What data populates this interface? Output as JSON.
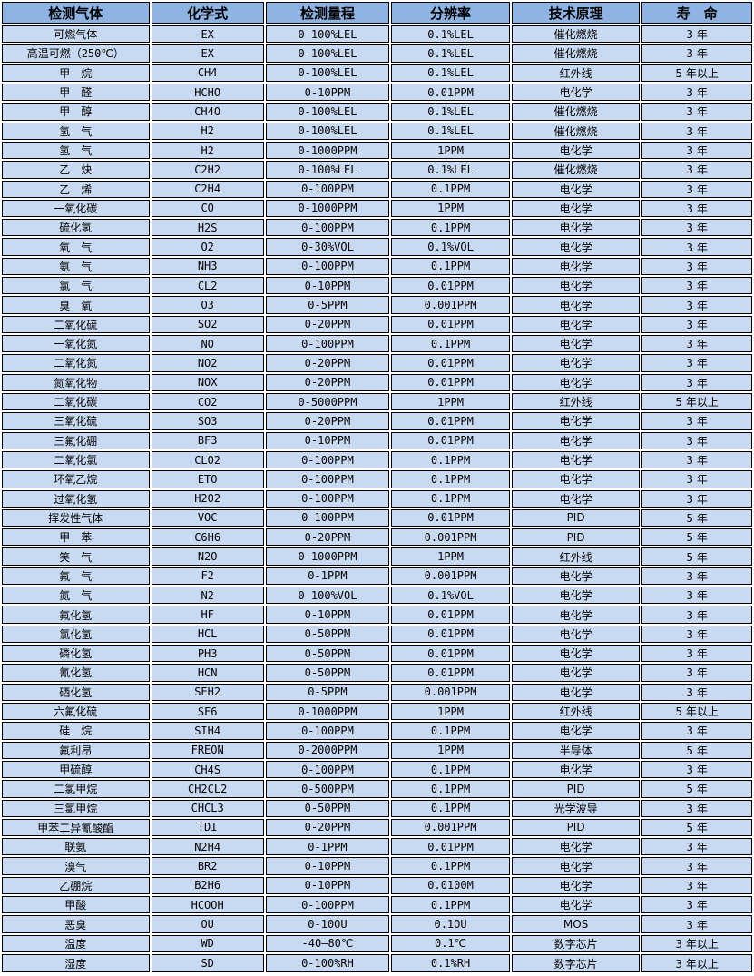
{
  "table": {
    "headers": [
      "检测气体",
      "化学式",
      "检测量程",
      "分辨率",
      "技术原理",
      "寿　命"
    ],
    "column_keys": [
      "gas-name",
      "formula",
      "range",
      "resolution",
      "principle",
      "lifespan"
    ],
    "colors": {
      "header_bg": "#8db4e2",
      "row_bg": "#c8daf1",
      "border": "#000000",
      "background": "#ffffff",
      "text": "#000000"
    },
    "rows": [
      [
        "可燃气体",
        "EX",
        "0-100%LEL",
        "0.1%LEL",
        "催化燃烧",
        "3 年"
      ],
      [
        "高温可燃（250℃）",
        "EX",
        "0-100%LEL",
        "0.1%LEL",
        "催化燃烧",
        "3 年"
      ],
      [
        "甲　烷",
        "CH4",
        "0-100%LEL",
        "0.1%LEL",
        "红外线",
        "5 年以上"
      ],
      [
        "甲　醛",
        "HCHO",
        "0-10PPM",
        "0.01PPM",
        "电化学",
        "3 年"
      ],
      [
        "甲　醇",
        "CH4O",
        "0-100%LEL",
        "0.1%LEL",
        "催化燃烧",
        "3 年"
      ],
      [
        "氢　气",
        "H2",
        "0-100%LEL",
        "0.1%LEL",
        "催化燃烧",
        "3 年"
      ],
      [
        "氢　气",
        "H2",
        "0-1000PPM",
        "1PPM",
        "电化学",
        "3 年"
      ],
      [
        "乙　炔",
        "C2H2",
        "0-100%LEL",
        "0.1%LEL",
        "催化燃烧",
        "3 年"
      ],
      [
        "乙　烯",
        "C2H4",
        "0-100PPM",
        "0.1PPM",
        "电化学",
        "3 年"
      ],
      [
        "一氧化碳",
        "CO",
        "0-1000PPM",
        "1PPM",
        "电化学",
        "3 年"
      ],
      [
        "硫化氢",
        "H2S",
        "0-100PPM",
        "0.1PPM",
        "电化学",
        "3 年"
      ],
      [
        "氧　气",
        "O2",
        "0-30%VOL",
        "0.1%VOL",
        "电化学",
        "3 年"
      ],
      [
        "氨　气",
        "NH3",
        "0-100PPM",
        "0.1PPM",
        "电化学",
        "3 年"
      ],
      [
        "氯　气",
        "CL2",
        "0-10PPM",
        "0.01PPM",
        "电化学",
        "3 年"
      ],
      [
        "臭　氧",
        "O3",
        "0-5PPM",
        "0.001PPM",
        "电化学",
        "3 年"
      ],
      [
        "二氧化硫",
        "SO2",
        "0-20PPM",
        "0.01PPM",
        "电化学",
        "3 年"
      ],
      [
        "一氧化氮",
        "NO",
        "0-100PPM",
        "0.1PPM",
        "电化学",
        "3 年"
      ],
      [
        "二氧化氮",
        "NO2",
        "0-20PPM",
        "0.01PPM",
        "电化学",
        "3 年"
      ],
      [
        "氮氧化物",
        "NOX",
        "0-20PPM",
        "0.01PPM",
        "电化学",
        "3 年"
      ],
      [
        "二氧化碳",
        "CO2",
        "0-5000PPM",
        "1PPM",
        "红外线",
        "5 年以上"
      ],
      [
        "三氧化硫",
        "SO3",
        "0-20PPM",
        "0.01PPM",
        "电化学",
        "3 年"
      ],
      [
        "三氟化硼",
        "BF3",
        "0-10PPM",
        "0.01PPM",
        "电化学",
        "3 年"
      ],
      [
        "二氧化氯",
        "CLO2",
        "0-100PPM",
        "0.1PPM",
        "电化学",
        "3 年"
      ],
      [
        "环氧乙烷",
        "ETO",
        "0-100PPM",
        "0.1PPM",
        "电化学",
        "3 年"
      ],
      [
        "过氧化氢",
        "H2O2",
        "0-100PPM",
        "0.1PPM",
        "电化学",
        "3 年"
      ],
      [
        "挥发性气体",
        "VOC",
        "0-100PPM",
        "0.01PPM",
        "PID",
        "5 年"
      ],
      [
        "甲　苯",
        "C6H6",
        "0-20PPM",
        "0.001PPM",
        "PID",
        "5 年"
      ],
      [
        "笑　气",
        "N2O",
        "0-1000PPM",
        "1PPM",
        "红外线",
        "5 年"
      ],
      [
        "氟　气",
        "F2",
        "0-1PPM",
        "0.001PPM",
        "电化学",
        "3 年"
      ],
      [
        "氮　气",
        "N2",
        "0-100%VOL",
        "0.1%VOL",
        "电化学",
        "3 年"
      ],
      [
        "氟化氢",
        "HF",
        "0-10PPM",
        "0.01PPM",
        "电化学",
        "3 年"
      ],
      [
        "氯化氢",
        "HCL",
        "0-50PPM",
        "0.01PPM",
        "电化学",
        "3 年"
      ],
      [
        "磷化氢",
        "PH3",
        "0-50PPM",
        "0.01PPM",
        "电化学",
        "3 年"
      ],
      [
        "氰化氢",
        "HCN",
        "0-50PPM",
        "0.01PPM",
        "电化学",
        "3 年"
      ],
      [
        "硒化氢",
        "SEH2",
        "0-5PPM",
        "0.001PPM",
        "电化学",
        "3 年"
      ],
      [
        "六氟化硫",
        "SF6",
        "0-1000PPM",
        "1PPM",
        "红外线",
        "5 年以上"
      ],
      [
        "硅　烷",
        "SIH4",
        "0-100PPM",
        "0.1PPM",
        "电化学",
        "3 年"
      ],
      [
        "氟利昂",
        "FREON",
        "0-2000PPM",
        "1PPM",
        "半导体",
        "5 年"
      ],
      [
        "甲硫醇",
        "CH4S",
        "0-100PPM",
        "0.1PPM",
        "电化学",
        "3 年"
      ],
      [
        "二氯甲烷",
        "CH2CL2",
        "0-500PPM",
        "0.1PPM",
        "PID",
        "5 年"
      ],
      [
        "三氯甲烷",
        "CHCL3",
        "0-50PPM",
        "0.1PPM",
        "光学波导",
        "3 年"
      ],
      [
        "甲苯二异氰酸酯",
        "TDI",
        "0-20PPM",
        "0.001PPM",
        "PID",
        "5 年"
      ],
      [
        "联氨",
        "N2H4",
        "0-1PPM",
        "0.01PPM",
        "电化学",
        "3 年"
      ],
      [
        "溴气",
        "BR2",
        "0-10PPM",
        "0.1PPM",
        "电化学",
        "3 年"
      ],
      [
        "乙硼烷",
        "B2H6",
        "0-10PPM",
        "0.0100M",
        "电化学",
        "3 年"
      ],
      [
        "甲酸",
        "HCOOH",
        "0-100PPM",
        "0.1PPM",
        "电化学",
        "3 年"
      ],
      [
        "恶臭",
        "OU",
        "0-10OU",
        "0.1OU",
        "MOS",
        "3 年"
      ],
      [
        "温度",
        "WD",
        "-40—80℃",
        "0.1℃",
        "数字芯片",
        "3 年以上"
      ],
      [
        "湿度",
        "SD",
        "0-100%RH",
        "0.1%RH",
        "数字芯片",
        "3 年以上"
      ]
    ]
  }
}
